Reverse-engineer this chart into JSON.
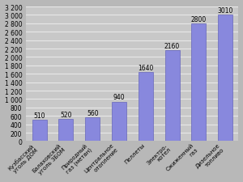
{
  "categories": [
    "Кузбасский\nуголь ДОМ",
    "Балаховский\nуголь ЗБОМ",
    "Природный\nгаз (метан)",
    "Центральное\nотопление",
    "Пеллеты",
    "Электро-\nкотел",
    "Сжиженный\nгаз",
    "Дизельное\nтопливо"
  ],
  "values": [
    510,
    520,
    560,
    940,
    1640,
    2160,
    2800,
    3010
  ],
  "bar_color": "#8888dd",
  "bar_edge_color": "#6666bb",
  "background_color": "#b8b8b8",
  "plot_bg_color": "#c8c8c8",
  "grid_color": "#e8e8e8",
  "ylim": [
    0,
    3200
  ],
  "yticks": [
    0,
    200,
    400,
    600,
    800,
    1000,
    1200,
    1400,
    1600,
    1800,
    2000,
    2200,
    2400,
    2600,
    2800,
    3000,
    3200
  ],
  "value_labels": [
    "510",
    "520",
    "560",
    "940",
    "1640",
    "2160",
    "2800",
    "3010"
  ],
  "label_fontsize": 5.0,
  "tick_fontsize": 5.5,
  "value_fontsize": 5.5
}
